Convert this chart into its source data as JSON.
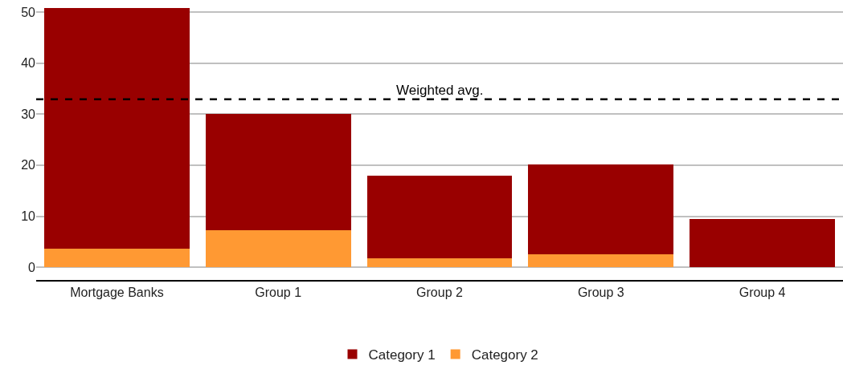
{
  "chart_data": {
    "type": "bar",
    "stacked": true,
    "categories": [
      "Mortgage Banks",
      "Group 1",
      "Group 2",
      "Group 3",
      "Group 4"
    ],
    "series": [
      {
        "name": "Category 2",
        "color": "#ff9933",
        "values": [
          3.6,
          7.3,
          1.7,
          2.5,
          0
        ]
      },
      {
        "name": "Category 1",
        "color": "#990000",
        "values": [
          47.2,
          22.8,
          16.2,
          17.6,
          9.4
        ]
      }
    ],
    "ylim": [
      -2.5,
      50.8
    ],
    "yticks": [
      0,
      10,
      20,
      30,
      40,
      50
    ],
    "grid": "y",
    "legend": "bottom",
    "ref_lines": [
      {
        "axis": "y",
        "value": 32.9,
        "label": "Weighted avg.",
        "color": "#000000",
        "line_style": "dashed"
      }
    ]
  }
}
